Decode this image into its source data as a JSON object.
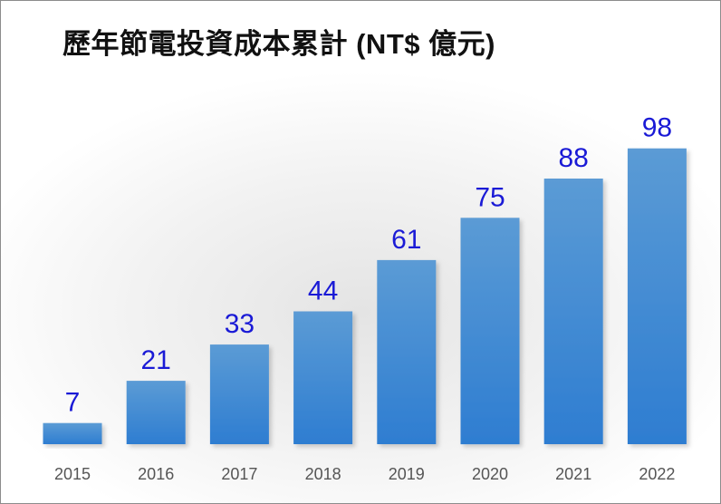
{
  "chart_data": {
    "type": "bar",
    "title": "歷年節電投資成本累計 (NT$ 億元)",
    "categories": [
      "2015",
      "2016",
      "2017",
      "2018",
      "2019",
      "2020",
      "2021",
      "2022"
    ],
    "values": [
      7,
      21,
      33,
      44,
      61,
      75,
      88,
      98
    ],
    "data_labels": [
      "7",
      "21",
      "33",
      "44",
      "61",
      "75",
      "88",
      "98"
    ],
    "xlabel": "",
    "ylabel": "",
    "ylim": [
      0,
      100
    ],
    "grid": false,
    "legend": "none",
    "colors": {
      "bar_top": "#5b9bd5",
      "bar_bottom": "#2e7dd1",
      "label": "#1a1ad6",
      "tick": "#555555"
    }
  }
}
